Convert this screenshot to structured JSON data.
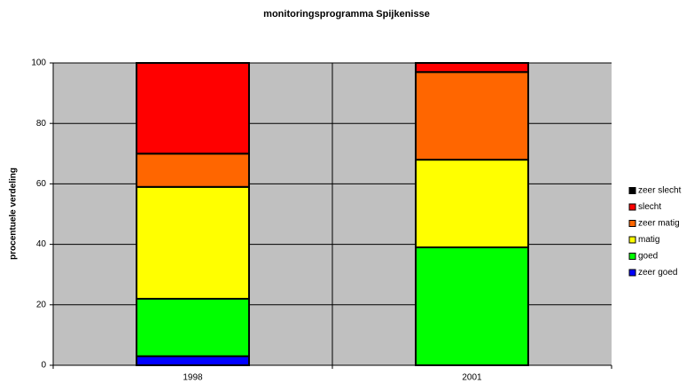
{
  "chart_data": {
    "type": "stacked_bar",
    "title": "monitoringsprogramma Spijkenisse",
    "ylabel": "procentuele verdeling",
    "categories": [
      "1998",
      "2001"
    ],
    "series": [
      {
        "name": "zeer goed",
        "color": "#0000ff",
        "values": [
          3,
          0
        ]
      },
      {
        "name": "goed",
        "color": "#00ff00",
        "values": [
          19,
          39
        ]
      },
      {
        "name": "matig",
        "color": "#ffff00",
        "values": [
          37,
          29
        ]
      },
      {
        "name": "zeer matig",
        "color": "#ff6600",
        "values": [
          11,
          29
        ]
      },
      {
        "name": "slecht",
        "color": "#ff0000",
        "values": [
          30,
          3
        ]
      },
      {
        "name": "zeer slecht",
        "color": "#000000",
        "values": [
          0,
          0
        ]
      }
    ],
    "ylim": [
      0,
      100
    ],
    "yticks": [
      0,
      20,
      40,
      60,
      80,
      100
    ],
    "grid": true,
    "legend": "right"
  }
}
